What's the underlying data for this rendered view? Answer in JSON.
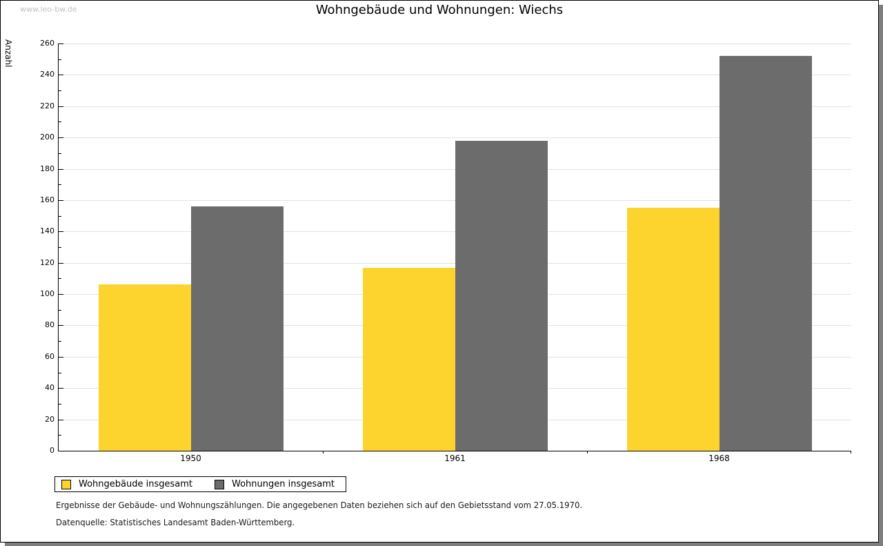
{
  "watermark": "www.leo-bw.de",
  "header": {
    "title": "Wohngebäude und Wohnungen: Wiechs"
  },
  "chart_data": {
    "type": "bar",
    "title": "Wohngebäude und Wohnungen: Wiechs",
    "categories": [
      "1950",
      "1961",
      "1968"
    ],
    "series": [
      {
        "name": "Wohngebäude insgesamt",
        "color": "#fdd42e",
        "values": [
          106,
          117,
          155
        ]
      },
      {
        "name": "Wohnungen insgesamt",
        "color": "#6c6c6c",
        "values": [
          156,
          198,
          252
        ]
      }
    ],
    "xlabel": "",
    "ylabel": "Anzahl",
    "ylim": [
      0,
      260
    ],
    "ytick_step": 20,
    "minor_tick_step": 10,
    "grid": true,
    "gridline_color": "#e2e2e2",
    "legend_position": "bottom-left",
    "bar_colors": {
      "yellow": "#fdd42e",
      "gray": "#6c6c6c"
    }
  },
  "footnotes": {
    "line1": "Ergebnisse der Gebäude- und Wohnungszählungen. Die angegebenen Daten beziehen sich auf den Gebietsstand vom 27.05.1970.",
    "line2": "Datenquelle: Statistisches Landesamt Baden-Württemberg."
  }
}
